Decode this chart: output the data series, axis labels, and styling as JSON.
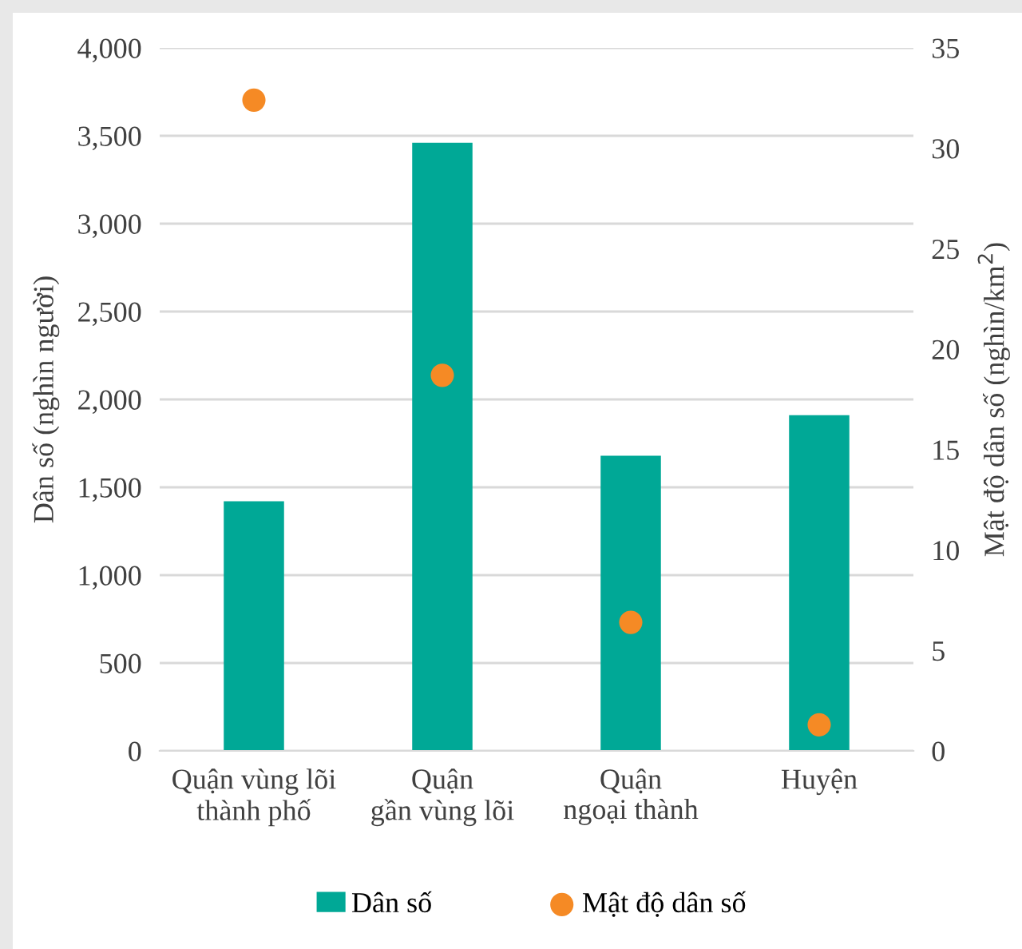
{
  "chart_data": {
    "type": "bar",
    "categories": [
      "Quận vùng lõi\nthành phố",
      "Quận\ngần vùng lõi",
      "Quận\nngoại thành",
      "Huyện"
    ],
    "series": [
      {
        "name": "Dân số",
        "color": "#00a896",
        "values": [
          1420,
          3460,
          1680,
          1910
        ]
      },
      {
        "name": "Mật độ dân số",
        "type": "scatter",
        "axis": "y2",
        "color": "#f58a25",
        "marker": "circle",
        "values": [
          32.4,
          18.7,
          6.4,
          1.3
        ]
      }
    ],
    "ylabel": "Dân số (nghìn người)",
    "y2label": "Mật độ dân số (nghìn/km$^{2}$)",
    "ylim": [
      0,
      4000
    ],
    "yticks": [
      {
        "value": 0,
        "label": "0"
      },
      {
        "value": 500,
        "label": "500"
      },
      {
        "value": 1000,
        "label": "1,000"
      },
      {
        "value": 1500,
        "label": "1,500"
      },
      {
        "value": 2000,
        "label": "2,000"
      },
      {
        "value": 2500,
        "label": "2,500"
      },
      {
        "value": 3000,
        "label": "3,000"
      },
      {
        "value": 3500,
        "label": "3,500"
      },
      {
        "value": 4000,
        "label": "4,000"
      }
    ],
    "y2lim": [
      0,
      35
    ],
    "y2ticks": [
      0,
      5,
      10,
      15,
      20,
      25,
      30,
      35
    ],
    "grid": "y",
    "legend": "bottom"
  }
}
